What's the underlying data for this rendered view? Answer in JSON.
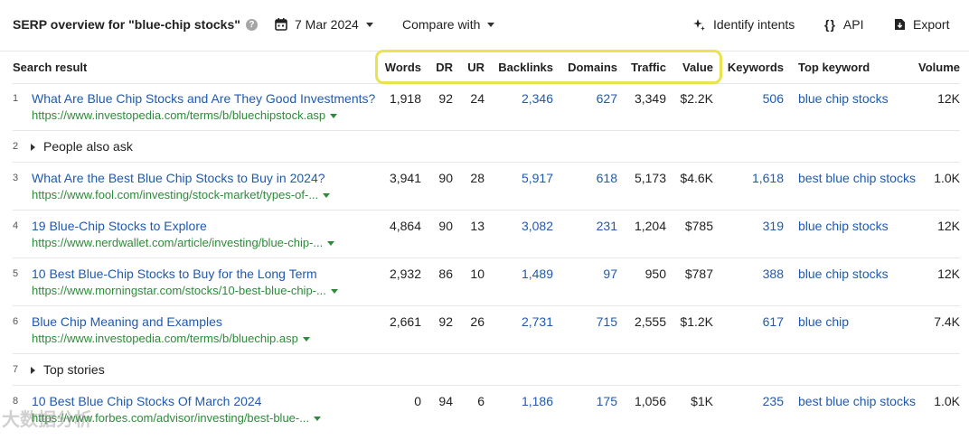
{
  "toolbar": {
    "title": "SERP overview for \"blue-chip stocks\"",
    "date": "7 Mar 2024",
    "compare": "Compare with",
    "identify": "Identify intents",
    "api": "API",
    "export": "Export"
  },
  "columns": {
    "search_result": "Search result",
    "words": "Words",
    "dr": "DR",
    "ur": "UR",
    "backlinks": "Backlinks",
    "domains": "Domains",
    "traffic": "Traffic",
    "value": "Value",
    "keywords": "Keywords",
    "top_keyword": "Top keyword",
    "volume": "Volume"
  },
  "rows": [
    {
      "idx": "1",
      "title": "What Are Blue Chip Stocks and Are They Good Investments?",
      "url": "https://www.investopedia.com/terms/b/bluechipstock.asp",
      "words": "1,918",
      "dr": "92",
      "ur": "24",
      "backlinks": "2,346",
      "domains": "627",
      "traffic": "3,349",
      "value": "$2.2K",
      "keywords": "506",
      "top_keyword": "blue chip stocks",
      "volume": "12K"
    },
    {
      "idx": "2",
      "expander": "People also ask"
    },
    {
      "idx": "3",
      "title": "What Are the Best Blue Chip Stocks to Buy in 2024?",
      "url": "https://www.fool.com/investing/stock-market/types-of-...",
      "words": "3,941",
      "dr": "90",
      "ur": "28",
      "backlinks": "5,917",
      "domains": "618",
      "traffic": "5,173",
      "value": "$4.6K",
      "keywords": "1,618",
      "top_keyword": "best blue chip stocks",
      "volume": "1.0K"
    },
    {
      "idx": "4",
      "title": "19 Blue-Chip Stocks to Explore",
      "url": "https://www.nerdwallet.com/article/investing/blue-chip-...",
      "words": "4,864",
      "dr": "90",
      "ur": "13",
      "backlinks": "3,082",
      "domains": "231",
      "traffic": "1,204",
      "value": "$785",
      "keywords": "319",
      "top_keyword": "blue chip stocks",
      "volume": "12K"
    },
    {
      "idx": "5",
      "title": "10 Best Blue-Chip Stocks to Buy for the Long Term",
      "url": "https://www.morningstar.com/stocks/10-best-blue-chip-...",
      "words": "2,932",
      "dr": "86",
      "ur": "10",
      "backlinks": "1,489",
      "domains": "97",
      "traffic": "950",
      "value": "$787",
      "keywords": "388",
      "top_keyword": "blue chip stocks",
      "volume": "12K"
    },
    {
      "idx": "6",
      "title": "Blue Chip Meaning and Examples",
      "url": "https://www.investopedia.com/terms/b/bluechip.asp",
      "words": "2,661",
      "dr": "92",
      "ur": "26",
      "backlinks": "2,731",
      "domains": "715",
      "traffic": "2,555",
      "value": "$1.2K",
      "keywords": "617",
      "top_keyword": "blue chip",
      "volume": "7.4K"
    },
    {
      "idx": "7",
      "expander": "Top stories"
    },
    {
      "idx": "8",
      "title": "10 Best Blue Chip Stocks Of March 2024",
      "url": "https://www.forbes.com/advisor/investing/best-blue-...",
      "words": "0",
      "dr": "94",
      "ur": "6",
      "backlinks": "1,186",
      "domains": "175",
      "traffic": "1,056",
      "value": "$1K",
      "keywords": "235",
      "top_keyword": "best blue chip stocks",
      "volume": "1.0K"
    }
  ],
  "watermark": "大数据分析"
}
